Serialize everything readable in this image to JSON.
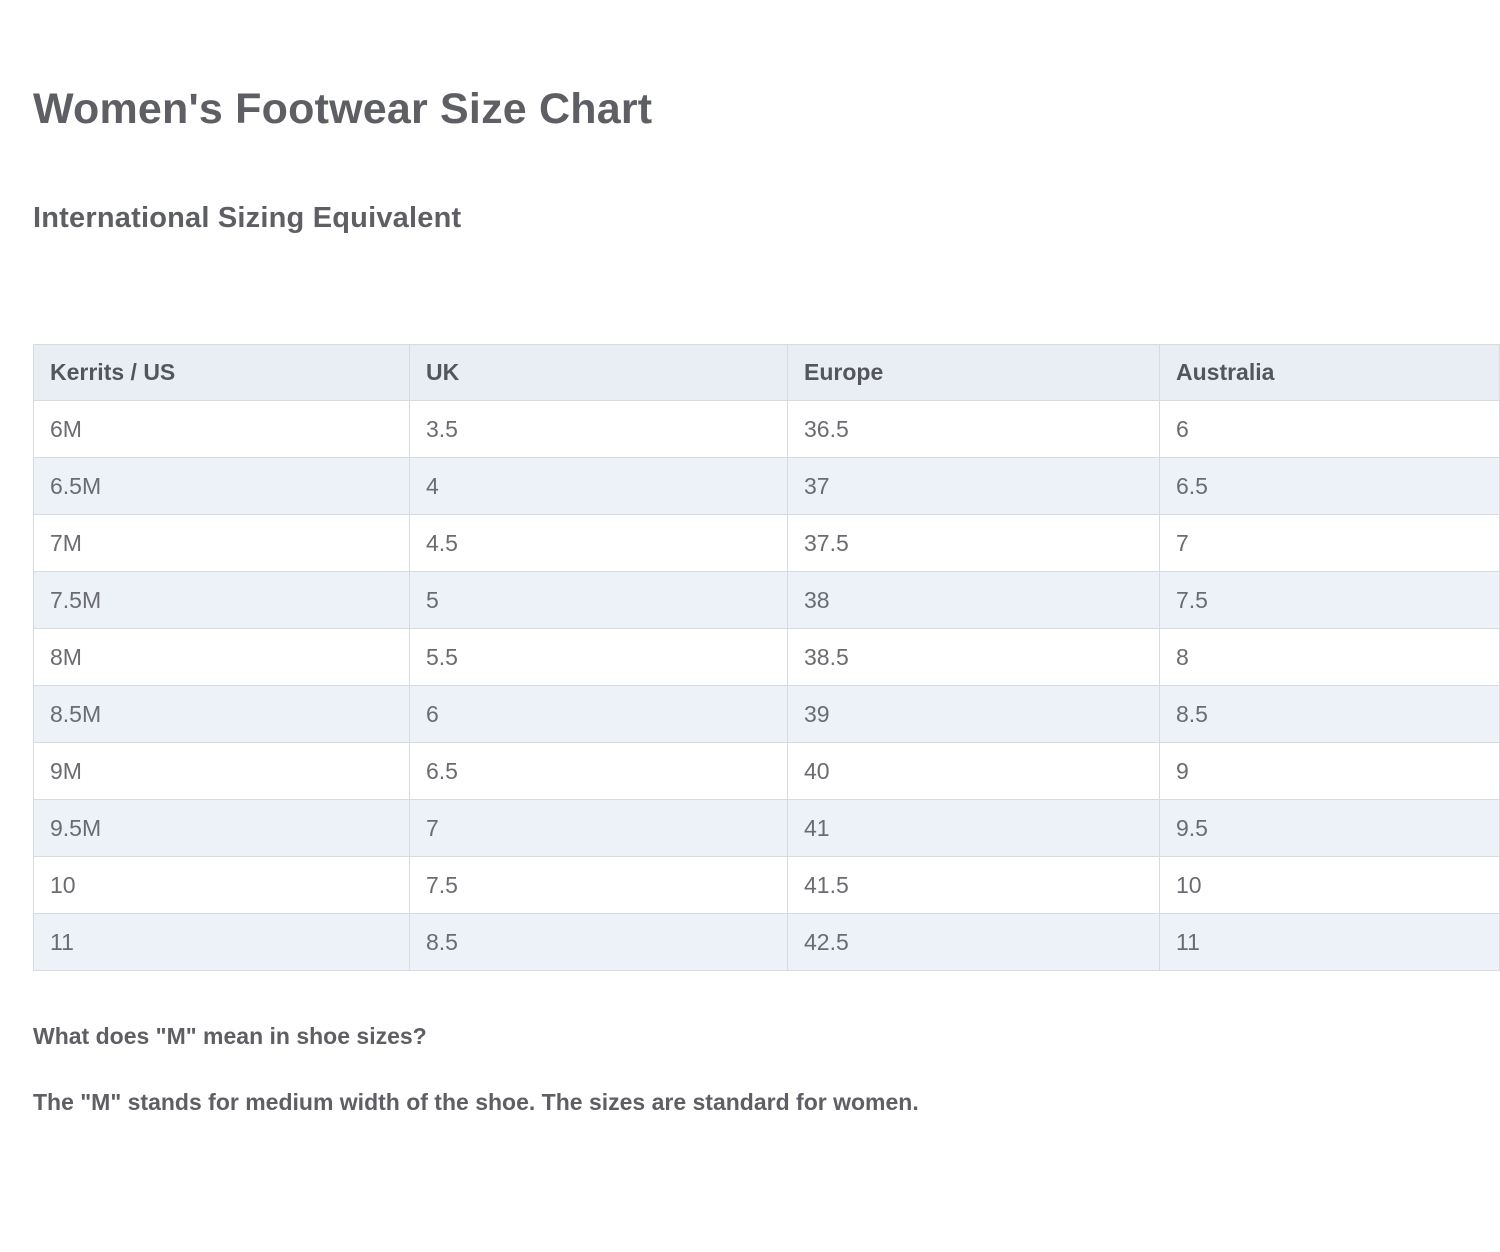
{
  "page": {
    "title": "Women's Footwear Size Chart",
    "subtitle": "International Sizing Equivalent"
  },
  "chart_data": {
    "type": "table",
    "title": "Women's Footwear Size Chart",
    "subtitle": "International Sizing Equivalent",
    "headers": [
      "Kerrits / US",
      "UK",
      "Europe",
      "Australia"
    ],
    "rows": [
      [
        "6M",
        "3.5",
        "36.5",
        "6"
      ],
      [
        "6.5M",
        "4",
        "37",
        "6.5"
      ],
      [
        "7M",
        "4.5",
        "37.5",
        "7"
      ],
      [
        "7.5M",
        "5",
        "38",
        "7.5"
      ],
      [
        "8M",
        "5.5",
        "38.5",
        "8"
      ],
      [
        "8.5M",
        "6",
        "39",
        "8.5"
      ],
      [
        "9M",
        "6.5",
        "40",
        "9"
      ],
      [
        "9.5M",
        "7",
        "41",
        "9.5"
      ],
      [
        "10",
        "7.5",
        "41.5",
        "10"
      ],
      [
        "11",
        "8.5",
        "42.5",
        "11"
      ]
    ]
  },
  "footer": {
    "question": "What does \"M\" mean in shoe sizes?",
    "answer": "The \"M\" stands for medium width of the shoe. The sizes are standard for women."
  },
  "colors": {
    "header_bg": "#e9eef5",
    "row_alt_bg": "#edf1f8",
    "row_bg": "#ffffff",
    "border": "#d7dbe0",
    "heading_text": "#5e5f65",
    "header_cell_text": "#55565c",
    "body_text": "#6b6c71"
  }
}
